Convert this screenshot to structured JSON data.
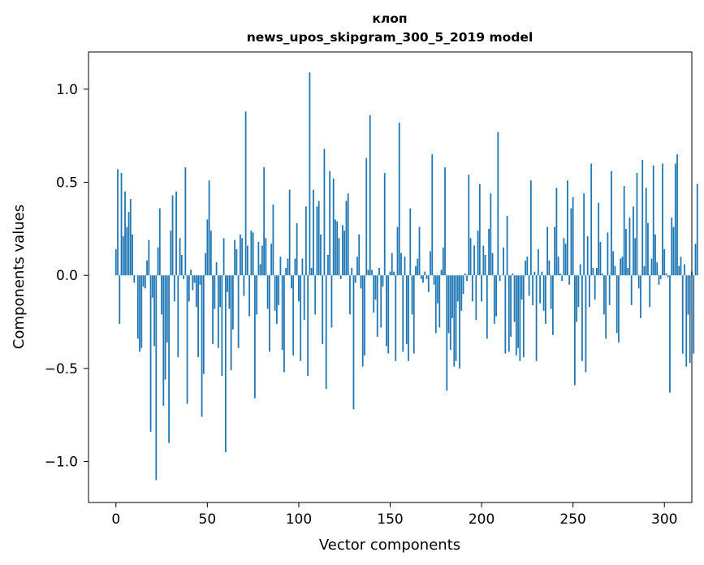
{
  "chart_data": {
    "type": "bar",
    "title": "клоп",
    "subtitle": "news_upos_skipgram_300_5_2019 model",
    "xlabel": "Vector components",
    "ylabel": "Components values",
    "xlim": [
      -15,
      315
    ],
    "ylim": [
      -1.22,
      1.2
    ],
    "xticks": [
      0,
      50,
      100,
      150,
      200,
      250,
      300
    ],
    "yticks": [
      1.0,
      0.5,
      0.0,
      -0.5,
      -1.0
    ],
    "ytick_labels": [
      "1.0",
      "0.5",
      "0.0",
      "−0.5",
      "−1.0"
    ],
    "grid": false,
    "bar_color": "#1f77b4",
    "values": [
      0.14,
      0.57,
      -0.26,
      0.55,
      0.21,
      0.45,
      0.26,
      0.34,
      0.41,
      0.22,
      -0.04,
      0.0,
      -0.34,
      -0.41,
      -0.39,
      -0.06,
      -0.07,
      0.08,
      0.19,
      -0.84,
      -0.12,
      -0.38,
      -1.1,
      0.15,
      0.36,
      -0.21,
      -0.7,
      -0.56,
      -0.36,
      -0.9,
      0.24,
      0.43,
      -0.14,
      0.45,
      -0.44,
      0.2,
      0.11,
      -0.02,
      0.58,
      -0.69,
      -0.14,
      0.03,
      -0.08,
      -0.04,
      -0.17,
      -0.44,
      -0.05,
      -0.76,
      -0.53,
      0.12,
      0.3,
      0.51,
      0.24,
      -0.37,
      -0.18,
      0.07,
      -0.39,
      -0.17,
      -0.54,
      0.2,
      -0.95,
      -0.09,
      -0.18,
      -0.51,
      -0.29,
      0.19,
      0.14,
      -0.39,
      0.22,
      0.2,
      -0.11,
      0.88,
      0.16,
      -0.22,
      0.24,
      0.23,
      -0.66,
      -0.21,
      0.18,
      0.06,
      0.16,
      0.58,
      0.2,
      -0.18,
      -0.41,
      0.17,
      0.38,
      -0.19,
      -0.26,
      -0.16,
      0.1,
      -0.4,
      -0.52,
      0.04,
      0.09,
      0.46,
      -0.07,
      -0.43,
      0.09,
      0.28,
      -0.14,
      -0.46,
      0.09,
      -0.24,
      0.37,
      -0.54,
      1.09,
      0.04,
      0.46,
      -0.21,
      0.37,
      0.4,
      0.22,
      -0.37,
      0.68,
      -0.61,
      0.11,
      0.56,
      -0.28,
      0.52,
      0.3,
      0.29,
      0.2,
      -0.02,
      0.27,
      0.24,
      0.4,
      0.44,
      -0.21,
      0.04,
      -0.72,
      -0.04,
      0.1,
      0.22,
      -0.07,
      -0.49,
      -0.43,
      0.63,
      0.03,
      0.86,
      0.03,
      -0.2,
      -0.13,
      -0.33,
      0.04,
      -0.28,
      -0.06,
      0.55,
      -0.38,
      -0.42,
      0.02,
      0.12,
      0.02,
      -0.46,
      0.26,
      0.82,
      0.12,
      -0.41,
      0.1,
      -0.37,
      -0.46,
      0.36,
      -0.21,
      -0.42,
      0.05,
      0.09,
      0.26,
      -0.02,
      -0.04,
      0.02,
      -0.02,
      -0.09,
      0.13,
      0.65,
      -0.05,
      -0.31,
      -0.15,
      -0.28,
      0.03,
      0.15,
      0.58,
      -0.62,
      -0.31,
      -0.4,
      -0.23,
      -0.49,
      -0.46,
      -0.14,
      -0.5,
      -0.19,
      -0.1,
      0.01,
      -0.03,
      0.54,
      0.2,
      -0.14,
      0.16,
      -0.24,
      0.24,
      0.49,
      -0.14,
      0.16,
      0.11,
      -0.34,
      0.25,
      0.44,
      0.12,
      -0.26,
      -0.22,
      0.77,
      -0.03,
      0.0,
      0.15,
      -0.42,
      0.32,
      -0.41,
      -0.33,
      0.01,
      -0.25,
      -0.43,
      -0.39,
      -0.46,
      -0.13,
      -0.44,
      0.08,
      0.1,
      -0.11,
      0.51,
      -0.16,
      0.02,
      -0.46,
      0.14,
      -0.15,
      0.02,
      -0.19,
      -0.26,
      0.26,
      0.08,
      -0.18,
      -0.32,
      0.26,
      0.47,
      0.1,
      0.01,
      -0.03,
      0.2,
      0.17,
      0.51,
      -0.05,
      0.36,
      0.42,
      -0.59,
      -0.25,
      -0.17,
      0.06,
      -0.46,
      0.44,
      -0.52,
      0.21,
      -0.17,
      0.6,
      0.04,
      -0.13,
      0.04,
      0.39,
      0.18,
      0.01,
      -0.21,
      -0.34,
      0.23,
      -0.16,
      0.56,
      0.13,
      0.05,
      -0.31,
      -0.36,
      0.09,
      0.1,
      0.48,
      0.25,
      0.04,
      0.31,
      -0.16,
      0.37,
      0.2,
      0.55,
      -0.07,
      -0.23,
      0.62,
      0.05,
      0.47,
      0.28,
      -0.17,
      0.09,
      0.59,
      0.22,
      0.07,
      -0.05,
      -0.02,
      0.6,
      0.14,
      0.01,
      -0.01,
      -0.63,
      0.31,
      0.26,
      0.6,
      0.65,
      0.05,
      0.1,
      -0.42,
      0.06,
      -0.49,
      -0.21,
      -0.47,
      0.02,
      -0.42,
      0.17,
      0.49
    ]
  }
}
